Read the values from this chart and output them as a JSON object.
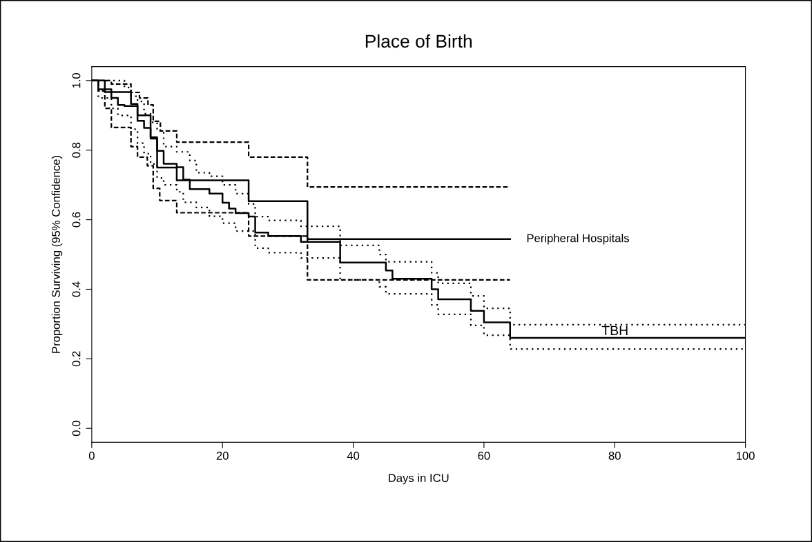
{
  "chart_data": {
    "type": "step",
    "title": "Place of Birth",
    "xlabel": "Days in ICU",
    "ylabel": "Proportion Surviving (95% Confidence)",
    "xlim": [
      0,
      100
    ],
    "xticks": [
      0,
      20,
      40,
      60,
      80,
      100
    ],
    "ylim": [
      -0.04,
      1.04
    ],
    "yticks": [
      {
        "value": 0,
        "label": "0.0"
      },
      0.2,
      0.4,
      0.6,
      0.8,
      {
        "value": 1,
        "label": "1.0"
      }
    ],
    "grid": false,
    "legend": false,
    "marker": "none",
    "series": [
      {
        "name": "Peripheral Hospitals",
        "color": "#000000",
        "line_style": "solid",
        "x": [
          0,
          2,
          6,
          7,
          9,
          10,
          13,
          24,
          33,
          64
        ],
        "values": [
          1.0,
          0.967,
          0.933,
          0.9,
          0.833,
          0.75,
          0.713,
          0.653,
          0.544,
          0.544
        ]
      },
      {
        "color": "#000000",
        "line_style": "dashed",
        "x": [
          0,
          3,
          6,
          7.3,
          8.6,
          9.4,
          10.5,
          13,
          24,
          33,
          64
        ],
        "values": [
          1.0,
          0.99,
          0.966,
          0.95,
          0.93,
          0.883,
          0.855,
          0.823,
          0.78,
          0.694,
          0.694
        ]
      },
      {
        "color": "#000000",
        "line_style": "dashed",
        "x": [
          0,
          1,
          2,
          3,
          6,
          7,
          8.5,
          9.4,
          10.4,
          13,
          24,
          33,
          64
        ],
        "values": [
          1.0,
          0.97,
          0.92,
          0.865,
          0.81,
          0.78,
          0.755,
          0.69,
          0.655,
          0.62,
          0.553,
          0.427,
          0.427
        ]
      },
      {
        "name": "TBH",
        "color": "#000000",
        "line_style": "solid",
        "x": [
          0,
          1,
          3,
          4,
          5,
          7,
          8,
          9,
          10,
          11,
          13,
          14,
          15,
          18,
          20,
          21,
          22,
          24,
          25,
          27,
          32,
          38,
          45,
          46,
          52,
          53,
          58,
          60,
          64,
          100
        ],
        "values": [
          1.0,
          0.975,
          0.95,
          0.93,
          0.927,
          0.884,
          0.864,
          0.837,
          0.798,
          0.761,
          0.751,
          0.715,
          0.688,
          0.675,
          0.649,
          0.632,
          0.619,
          0.609,
          0.563,
          0.553,
          0.536,
          0.477,
          0.454,
          0.43,
          0.4,
          0.371,
          0.338,
          0.305,
          0.26,
          0.26
        ]
      },
      {
        "color": "#000000",
        "line_style": "dotted",
        "x": [
          0,
          5,
          6,
          7,
          8,
          9,
          10,
          11,
          13,
          15,
          16,
          18,
          20,
          22,
          24,
          25,
          27,
          32,
          38,
          44,
          45,
          52,
          53,
          58,
          60,
          64,
          100
        ],
        "values": [
          1.0,
          0.98,
          0.955,
          0.94,
          0.905,
          0.88,
          0.855,
          0.81,
          0.795,
          0.77,
          0.735,
          0.725,
          0.7,
          0.675,
          0.645,
          0.609,
          0.598,
          0.581,
          0.526,
          0.5,
          0.479,
          0.447,
          0.417,
          0.381,
          0.345,
          0.298,
          0.298
        ]
      },
      {
        "color": "#000000",
        "line_style": "dotted",
        "x": [
          0,
          1,
          3,
          4,
          6,
          7,
          8,
          9,
          10,
          11,
          13,
          14,
          16,
          18,
          20,
          22,
          25,
          27,
          32,
          38,
          44,
          45,
          52,
          53,
          58,
          60,
          64,
          100
        ],
        "values": [
          1.0,
          0.95,
          0.92,
          0.9,
          0.86,
          0.82,
          0.79,
          0.76,
          0.72,
          0.7,
          0.68,
          0.65,
          0.635,
          0.61,
          0.59,
          0.567,
          0.518,
          0.505,
          0.49,
          0.427,
          0.407,
          0.387,
          0.355,
          0.328,
          0.296,
          0.268,
          0.228,
          0.228
        ]
      }
    ]
  }
}
